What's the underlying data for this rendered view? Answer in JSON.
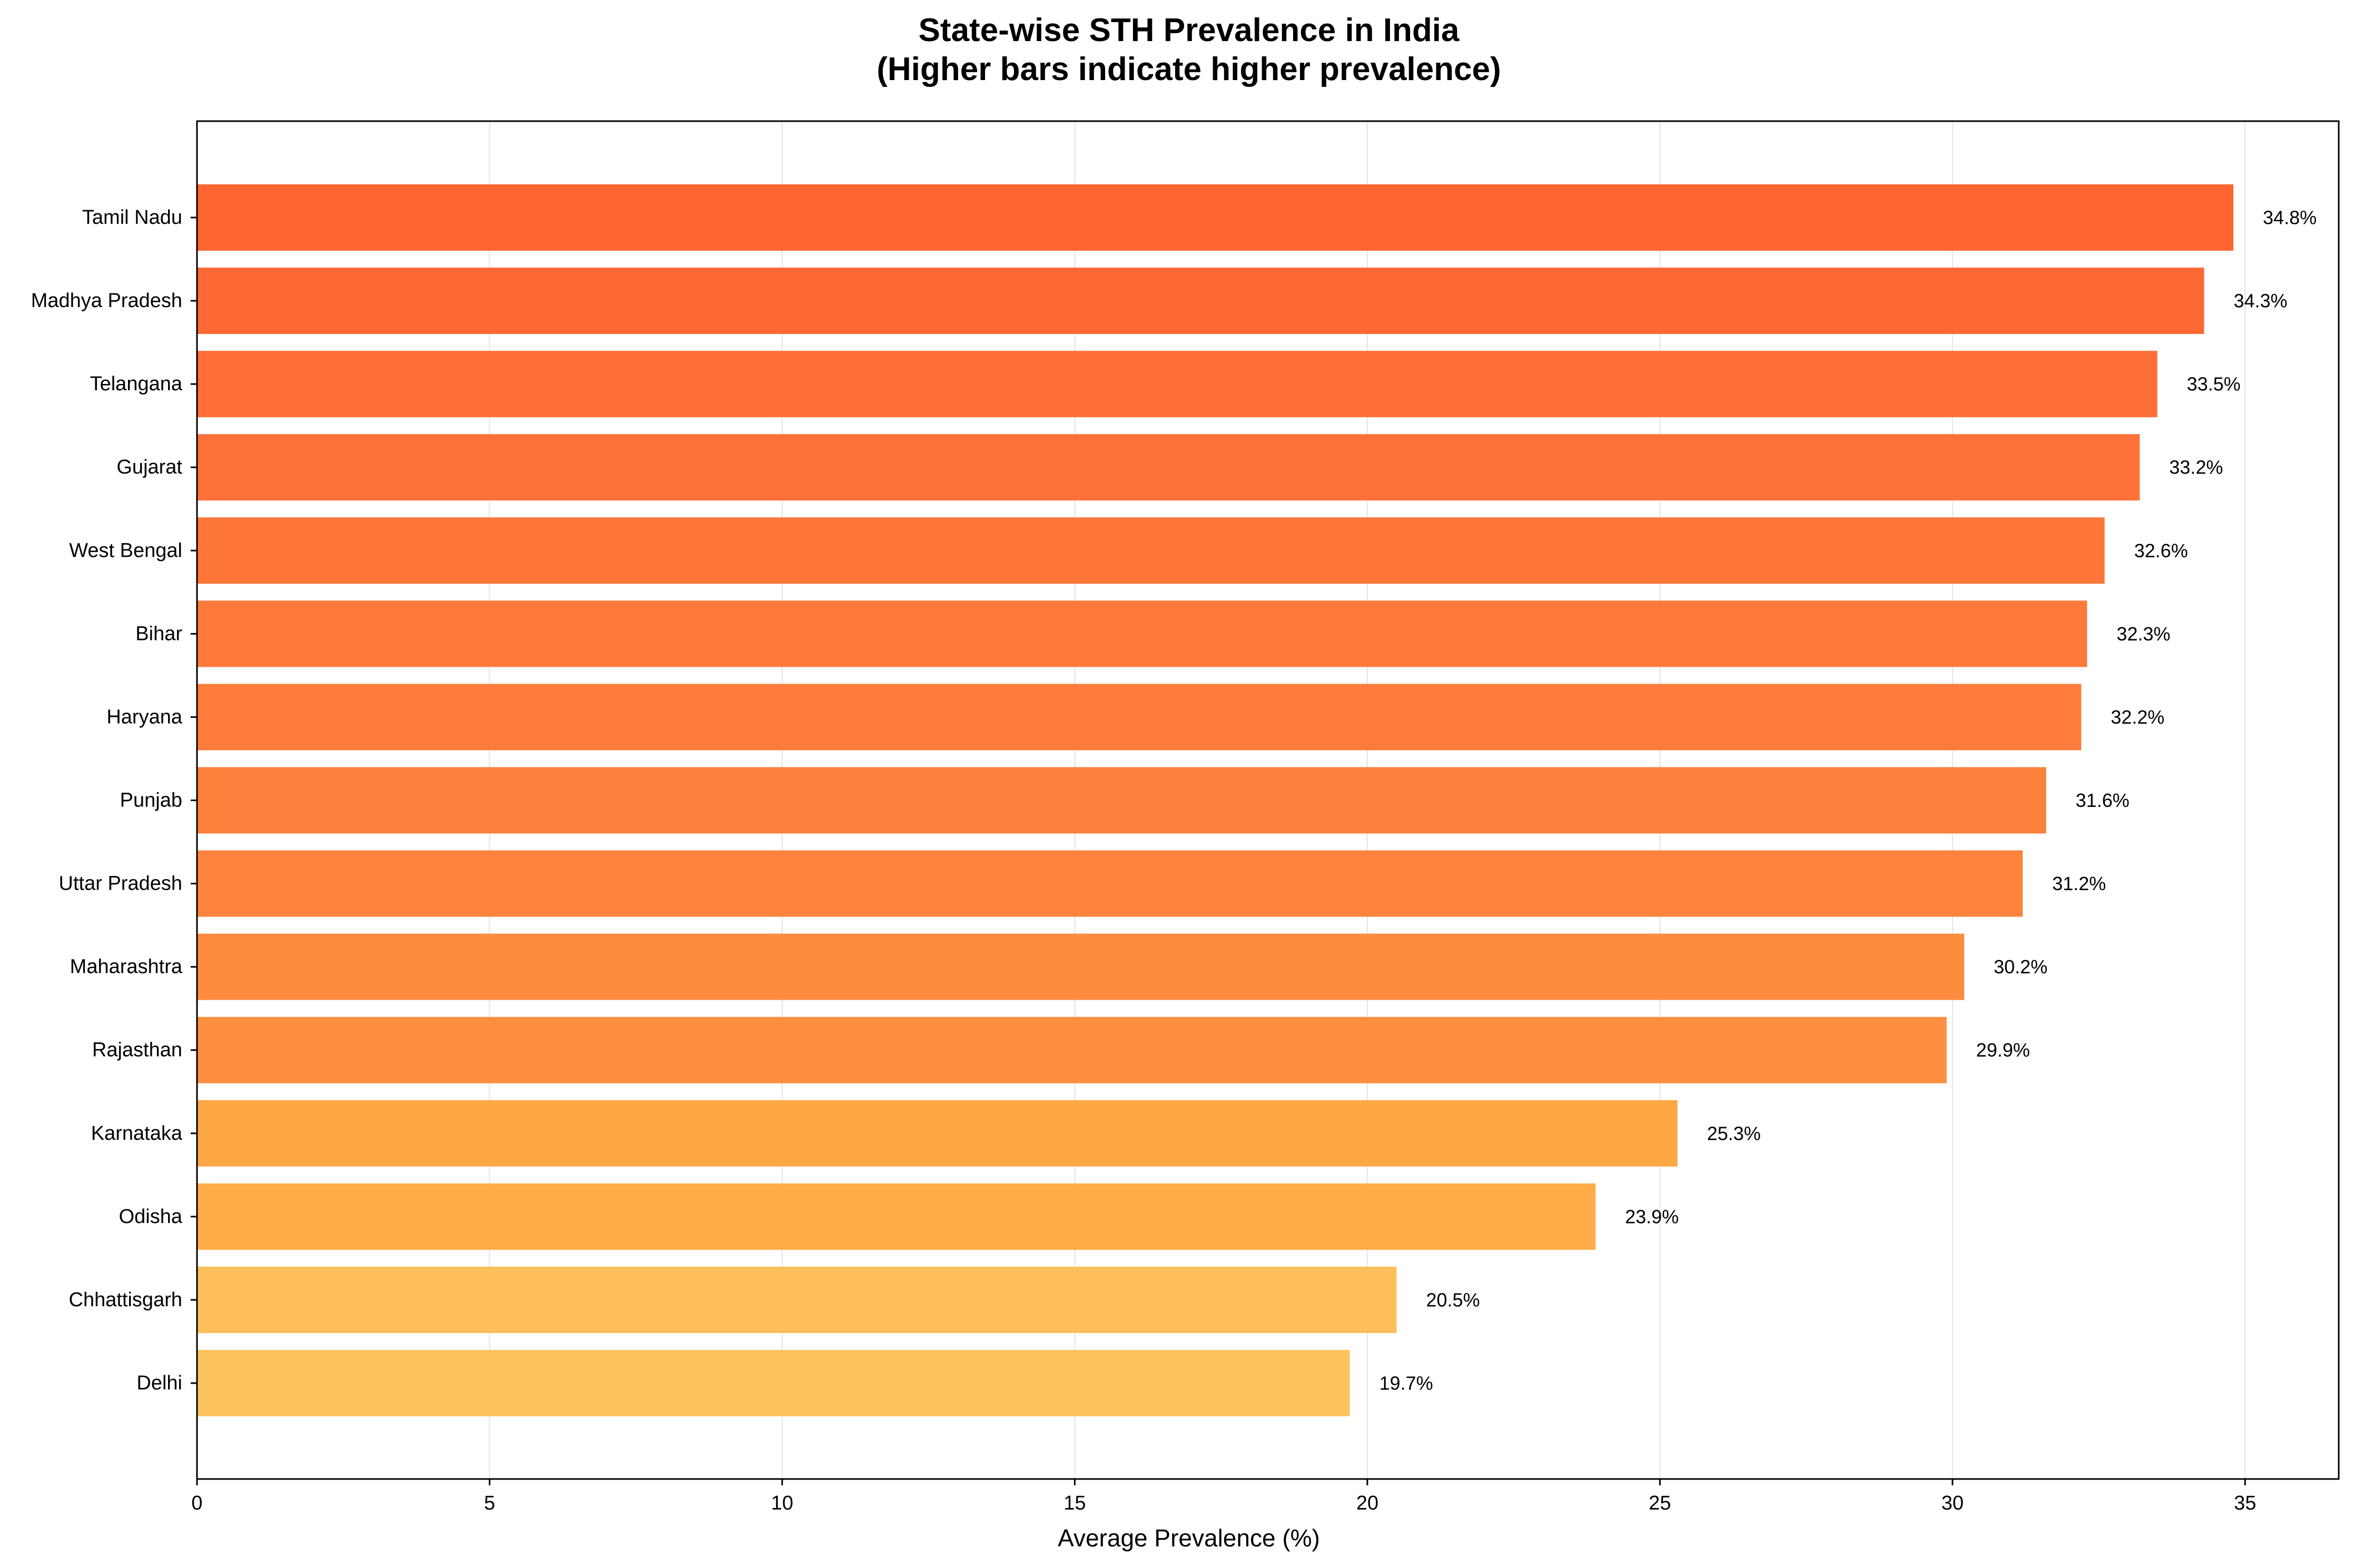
{
  "chart_data": {
    "type": "bar",
    "orientation": "horizontal",
    "title": "State-wise STH Prevalence in India",
    "subtitle": "(Higher bars indicate higher prevalence)",
    "xlabel": "Average Prevalence (%)",
    "ylabel": "",
    "xlim": [
      0,
      36.6
    ],
    "xticks": [
      0,
      5,
      10,
      15,
      20,
      25,
      30,
      35
    ],
    "grid": "vertical",
    "legend": "none",
    "categories": [
      "Tamil Nadu",
      "Madhya Pradesh",
      "Telangana",
      "Gujarat",
      "West Bengal",
      "Bihar",
      "Haryana",
      "Punjab",
      "Uttar Pradesh",
      "Maharashtra",
      "Rajasthan",
      "Karnataka",
      "Odisha",
      "Chhattisgarh",
      "Delhi"
    ],
    "values": [
      34.8,
      34.3,
      33.5,
      33.2,
      32.6,
      32.3,
      32.2,
      31.6,
      31.2,
      30.2,
      29.9,
      25.3,
      23.9,
      20.5,
      19.7
    ],
    "data_labels": [
      "34.8%",
      "34.3%",
      "33.5%",
      "33.2%",
      "32.6%",
      "32.3%",
      "32.2%",
      "31.6%",
      "31.2%",
      "30.2%",
      "29.9%",
      "25.3%",
      "23.9%",
      "20.5%",
      "19.7%"
    ],
    "colors": [
      "#fe6531",
      "#fe6834",
      "#fe6e36",
      "#fe7138",
      "#fe763a",
      "#fe793b",
      "#fe7b3c",
      "#fe803d",
      "#fe843e",
      "#fe8c3f",
      "#fe8e40",
      "#fea745",
      "#feac47",
      "#febf5a",
      "#fec35e"
    ]
  }
}
